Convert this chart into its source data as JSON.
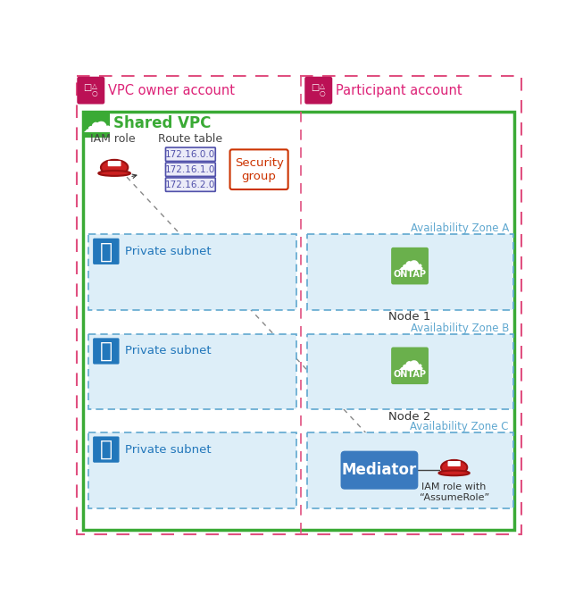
{
  "bg_color": "#ffffff",
  "outer_border_color": "#e05080",
  "shared_vpc_border_color": "#3aaa35",
  "subnet_fill": "#ddeef8",
  "subnet_border_color": "#60a8d0",
  "az_label_color": "#60a8d0",
  "vpc_owner_label": "VPC owner account",
  "participant_label": "Participant account",
  "shared_vpc_label": "Shared VPC",
  "iam_role_label": "IAM role",
  "route_table_label": "Route table",
  "route_entries": [
    "172.16.0.0",
    "172.16.1.0",
    "172.16.2.0"
  ],
  "route_fill": "#ebebf8",
  "route_border_color": "#5050aa",
  "security_group_label": "Security\ngroup",
  "security_group_border_color": "#cc3300",
  "security_group_text_color": "#cc3300",
  "private_subnet_label": "Private subnet",
  "az_labels": [
    "Availability Zone A",
    "Availability Zone B",
    "Availability Zone C"
  ],
  "mediator_label": "Mediator",
  "mediator_fill": "#3a7abf",
  "mediator_text_color": "#ffffff",
  "ontap_fill": "#6ab04c",
  "iam_role_assume_label": "IAM role with\n“AssumeRole”",
  "icon_account_fill": "#bb1155",
  "icon_account_color": "#dd2277",
  "dashed_line_color": "#888888",
  "lock_icon_fill": "#2277bb",
  "cloud_icon_fill": "#3aaa35",
  "helmet_fill": "#cc2020",
  "helmet_edge": "#991010"
}
